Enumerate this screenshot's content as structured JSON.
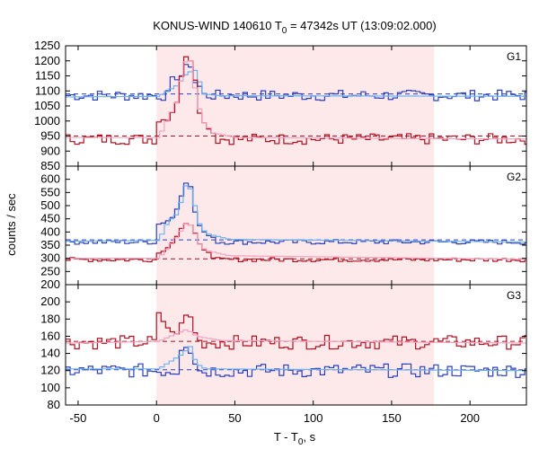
{
  "chart_data": {
    "type": "line",
    "title": "KONUS-WIND 140610 T",
    "title_sub": "0",
    "title_rest": " = 47342s UT (13:09:02.000)",
    "xlabel": "T - T",
    "xlabel_sub": "0",
    "xlabel_rest": ", s",
    "ylabel": "counts / sec",
    "xlim": [
      -58,
      236
    ],
    "xticks": [
      -50,
      0,
      50,
      100,
      150,
      200
    ],
    "xtick_labels": [
      "-50",
      "0",
      "50",
      "100",
      "150",
      "200"
    ],
    "shaded_interval": [
      0,
      177
    ],
    "colors": {
      "blue": "#2a3fbf",
      "red": "#b01020",
      "light_blue": "#6fb3ea",
      "pink": "#f4a3c0",
      "shade": "#fde8ea"
    },
    "panels": [
      {
        "label": "G1",
        "ylim": [
          850,
          1250
        ],
        "yticks": [
          850,
          900,
          950,
          1000,
          1050,
          1100,
          1150,
          1200,
          1250
        ],
        "ytick_labels": [
          "850",
          "900",
          "950",
          "1000",
          "1050",
          "1100",
          "1150",
          "1200",
          "1250"
        ],
        "series": [
          {
            "color_key": "blue",
            "baseline": 1085,
            "noise": 18,
            "pulse": [
              [
                9,
                1140
              ],
              [
                14,
                1145
              ],
              [
                17,
                1180
              ],
              [
                20,
                1190
              ],
              [
                23,
                1130
              ],
              [
                27,
                1110
              ]
            ],
            "fit": [
              [
                -58,
                1080
              ],
              [
                0,
                1082
              ],
              [
                12,
                1120
              ],
              [
                18,
                1160
              ],
              [
                24,
                1170
              ],
              [
                28,
                1090
              ],
              [
                40,
                1084
              ],
              [
                236,
                1082
              ]
            ]
          },
          {
            "color_key": "red",
            "baseline": 940,
            "noise": 18,
            "pulse": [
              [
                0,
                1000
              ],
              [
                7,
                1010
              ],
              [
                12,
                1070
              ],
              [
                16,
                1200
              ],
              [
                19,
                1220
              ],
              [
                22,
                1185
              ],
              [
                27,
                1000
              ],
              [
                31,
                985
              ],
              [
                35,
                960
              ]
            ],
            "fit": [
              [
                0,
                945
              ],
              [
                6,
                1010
              ],
              [
                12,
                1070
              ],
              [
                16,
                1195
              ],
              [
                20,
                1200
              ],
              [
                24,
                1080
              ],
              [
                28,
                1000
              ],
              [
                35,
                960
              ],
              [
                50,
                945
              ],
              [
                236,
                940
              ]
            ]
          }
        ],
        "dashed": [
          {
            "color_key": "blue",
            "value": 1090
          },
          {
            "color_key": "red",
            "value": 950
          }
        ]
      },
      {
        "label": "G2",
        "ylim": [
          200,
          650
        ],
        "yticks": [
          200,
          250,
          300,
          350,
          400,
          450,
          500,
          550,
          600
        ],
        "ytick_labels": [
          "200",
          "250",
          "300",
          "350",
          "400",
          "450",
          "500",
          "550",
          "600"
        ],
        "series": [
          {
            "color_key": "blue",
            "baseline": 362,
            "noise": 9,
            "pulse": [
              [
                0,
                430
              ],
              [
                5,
                440
              ],
              [
                10,
                460
              ],
              [
                14,
                530
              ],
              [
                17,
                590
              ],
              [
                20,
                580
              ],
              [
                24,
                450
              ],
              [
                28,
                400
              ],
              [
                35,
                380
              ]
            ],
            "fit": [
              [
                -58,
                365
              ],
              [
                0,
                368
              ],
              [
                6,
                440
              ],
              [
                12,
                470
              ],
              [
                17,
                575
              ],
              [
                21,
                560
              ],
              [
                25,
                440
              ],
              [
                30,
                395
              ],
              [
                45,
                372
              ],
              [
                236,
                362
              ]
            ]
          },
          {
            "color_key": "red",
            "baseline": 295,
            "noise": 8,
            "pulse": [
              [
                0,
                320
              ],
              [
                6,
                340
              ],
              [
                11,
                380
              ],
              [
                15,
                420
              ],
              [
                19,
                440
              ],
              [
                23,
                395
              ],
              [
                27,
                340
              ],
              [
                32,
                325
              ]
            ],
            "fit": [
              [
                0,
                300
              ],
              [
                6,
                340
              ],
              [
                12,
                385
              ],
              [
                17,
                430
              ],
              [
                21,
                425
              ],
              [
                25,
                360
              ],
              [
                30,
                330
              ],
              [
                45,
                310
              ],
              [
                236,
                296
              ]
            ]
          }
        ],
        "dashed": [
          {
            "color_key": "blue",
            "value": 370
          },
          {
            "color_key": "red",
            "value": 298
          }
        ]
      },
      {
        "label": "G3",
        "ylim": [
          80,
          220
        ],
        "yticks": [
          80,
          100,
          120,
          140,
          160,
          180,
          200
        ],
        "ytick_labels": [
          "80",
          "100",
          "120",
          "140",
          "160",
          "180",
          "200"
        ],
        "series": [
          {
            "color_key": "red",
            "baseline": 153,
            "noise": 8,
            "pulse": [
              [
                0,
                185
              ],
              [
                4,
                175
              ],
              [
                10,
                160
              ],
              [
                15,
                175
              ],
              [
                19,
                190
              ],
              [
                23,
                165
              ]
            ],
            "fit": [
              [
                -58,
                152
              ],
              [
                0,
                154
              ],
              [
                10,
                162
              ],
              [
                18,
                168
              ],
              [
                24,
                160
              ],
              [
                40,
                155
              ],
              [
                236,
                152
              ]
            ]
          },
          {
            "color_key": "blue",
            "baseline": 120,
            "noise": 8,
            "pulse": [
              [
                14,
                145
              ],
              [
                18,
                150
              ],
              [
                21,
                140
              ],
              [
                24,
                125
              ]
            ],
            "fit": [
              [
                -58,
                122
              ],
              [
                0,
                122
              ],
              [
                14,
                138
              ],
              [
                20,
                148
              ],
              [
                24,
                128
              ],
              [
                30,
                122
              ],
              [
                236,
                120
              ]
            ]
          }
        ],
        "dashed": [
          {
            "color_key": "red",
            "value": 154
          },
          {
            "color_key": "blue",
            "value": 121
          }
        ]
      }
    ]
  }
}
